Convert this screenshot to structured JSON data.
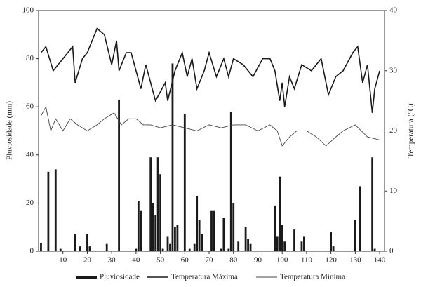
{
  "chart_data": {
    "type": "bar",
    "ylabel": "Pluviosidade (mm)",
    "y2label": "Temperatura (°C)",
    "xlim": [
      0,
      142
    ],
    "xticks": [
      10,
      20,
      30,
      40,
      50,
      60,
      70,
      80,
      90,
      100,
      110,
      120,
      130,
      140
    ],
    "ylim": [
      0,
      100
    ],
    "yticks": [
      0,
      20,
      40,
      60,
      80,
      100
    ],
    "y2lim": [
      0,
      40
    ],
    "y2ticks": [
      0,
      10,
      20,
      30,
      40
    ],
    "legend": "bottom",
    "series": [
      {
        "name": "Pluviosidade",
        "type": "bar",
        "color": "#1a1a1a",
        "x": [
          1,
          4,
          7,
          9,
          15,
          17,
          20,
          21,
          28,
          33,
          40,
          41,
          42,
          46,
          47,
          48,
          49,
          50,
          51,
          53,
          54,
          55,
          56,
          57,
          60,
          62,
          64,
          65,
          66,
          67,
          71,
          72,
          75,
          76,
          78,
          79,
          80,
          82,
          85,
          86,
          87,
          97,
          98,
          99,
          100,
          101,
          105,
          108,
          109,
          120,
          121,
          130,
          132,
          137,
          138
        ],
        "values": [
          3.5,
          33,
          34,
          1,
          7,
          2,
          7,
          2,
          3,
          63,
          1,
          21,
          17,
          39,
          20,
          15,
          39,
          32,
          1,
          6,
          3,
          78,
          10,
          11,
          57,
          1,
          3,
          23,
          13,
          7,
          17,
          17,
          1,
          14,
          1,
          58,
          20,
          4,
          10,
          5,
          3,
          19,
          6,
          31,
          11,
          4,
          9,
          4,
          6,
          8,
          2,
          13,
          27,
          39,
          1
        ]
      },
      {
        "name": "Temperatura Máxima",
        "type": "line",
        "axis": "y2",
        "color": "#1a1a1a",
        "x": [
          1,
          3,
          6,
          8,
          12,
          14,
          15,
          18,
          20,
          24,
          27,
          30,
          32,
          33,
          36,
          38,
          40,
          42,
          44,
          48,
          52,
          53,
          56,
          59,
          61,
          63,
          65,
          68,
          70,
          73,
          76,
          78,
          80,
          84,
          88,
          92,
          95,
          97,
          99,
          100,
          101,
          103,
          105,
          108,
          112,
          116,
          119,
          122,
          125,
          129,
          131,
          133,
          135,
          137,
          138,
          140
        ],
        "values": [
          33,
          34,
          30,
          31,
          33,
          34,
          28,
          32,
          33,
          37,
          36,
          31,
          35,
          30,
          33,
          33,
          30,
          27,
          31,
          25,
          28,
          25,
          30,
          33,
          29,
          32,
          27,
          30,
          33,
          29,
          32,
          29,
          32,
          31,
          29,
          32,
          32,
          30,
          25,
          28,
          24,
          29,
          27,
          31,
          30,
          32,
          26,
          29,
          30,
          33,
          34,
          28,
          31,
          23,
          27,
          30
        ]
      },
      {
        "name": "Temperatura Mínima",
        "type": "line",
        "axis": "y2",
        "color": "#444444",
        "x": [
          1,
          3,
          5,
          7,
          10,
          13,
          16,
          20,
          24,
          27,
          31,
          34,
          37,
          40,
          43,
          46,
          50,
          55,
          60,
          65,
          70,
          75,
          80,
          85,
          90,
          95,
          98,
          100,
          103,
          106,
          110,
          114,
          118,
          122,
          125,
          130,
          135,
          140
        ],
        "values": [
          22.5,
          24,
          20,
          22,
          20,
          22,
          21,
          20,
          21,
          22,
          23,
          21,
          22,
          22,
          21,
          21,
          20.5,
          21,
          20.5,
          20,
          21,
          20.5,
          21,
          21,
          20,
          21,
          20,
          17.5,
          19,
          20,
          20,
          19,
          17.5,
          19,
          20,
          21,
          19,
          18.5
        ]
      }
    ]
  }
}
